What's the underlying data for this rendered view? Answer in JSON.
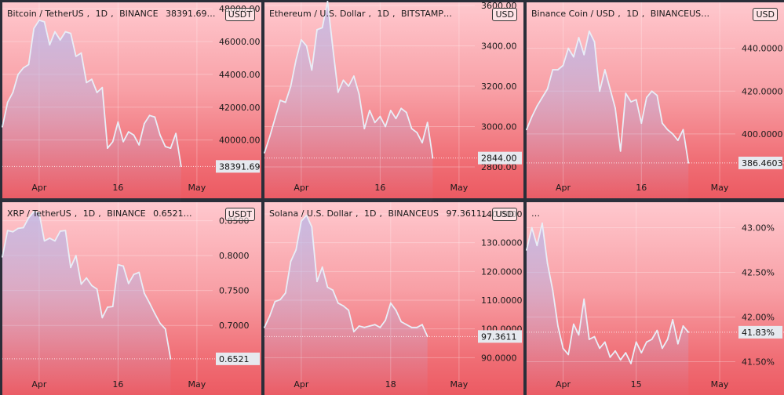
{
  "colors": {
    "line": "#e9eef7",
    "area_top": "#b8b6e8",
    "last_bg": "#e6e9ef",
    "text": "#1a1a1a"
  },
  "panels": [
    {
      "symbol": "Bitcoin / TetherUS",
      "interval": "1D",
      "exchange": "BINANCE",
      "last_value": "38391.69…",
      "currency": "USDT",
      "last_label": "38391.69",
      "chart_data": {
        "type": "area",
        "ylim": [
          37500,
          48200
        ],
        "y_ticks": [
          "40000.00",
          "42000.00",
          "44000.00",
          "46000.00",
          "48000.00"
        ],
        "y_tick_values": [
          40000,
          42000,
          44000,
          46000,
          48000
        ],
        "x_labels": [
          "Apr",
          "16",
          "May"
        ],
        "x_label_days": [
          7,
          22,
          37
        ],
        "last": 38391.69,
        "values": [
          40800,
          42300,
          42900,
          44000,
          44400,
          44600,
          46800,
          47300,
          47200,
          45800,
          46600,
          46100,
          46600,
          46500,
          45100,
          45300,
          43500,
          43700,
          42900,
          43200,
          39500,
          39900,
          41100,
          39900,
          40500,
          40300,
          39700,
          41000,
          41500,
          41400,
          40300,
          39600,
          39500,
          40400,
          38391.69
        ]
      }
    },
    {
      "symbol": "Ethereum / U.S. Dollar",
      "interval": "1D",
      "exchange": "BITSTAMP…",
      "last_value": "",
      "currency": "USD",
      "last_label": "2844.00",
      "chart_data": {
        "type": "area",
        "ylim": [
          2730,
          3600
        ],
        "y_ticks": [
          "2800.00",
          "3000.00",
          "3200.00",
          "3400.00",
          "3600.00"
        ],
        "y_tick_values": [
          2800,
          3000,
          3200,
          3400,
          3600
        ],
        "x_labels": [
          "Apr",
          "16",
          "May"
        ],
        "x_label_days": [
          7,
          22,
          37
        ],
        "last": 2844.0,
        "values": [
          2870,
          2950,
          3040,
          3130,
          3120,
          3200,
          3330,
          3430,
          3400,
          3280,
          3480,
          3490,
          3620,
          3390,
          3170,
          3230,
          3200,
          3250,
          3160,
          2990,
          3080,
          3020,
          3050,
          3000,
          3080,
          3040,
          3090,
          3070,
          2990,
          2970,
          2920,
          3020,
          2844
        ]
      }
    },
    {
      "symbol": "Binance Coin / USD",
      "interval": "1D",
      "exchange": "BINANCEUS…",
      "last_value": "",
      "currency": "USD",
      "last_label": "386.4603",
      "chart_data": {
        "type": "area",
        "ylim": [
          378,
          460
        ],
        "y_ticks": [
          "400.0000",
          "420.0000",
          "440.0000"
        ],
        "y_tick_values": [
          400,
          420,
          440
        ],
        "x_labels": [
          "Apr",
          "16",
          "May"
        ],
        "x_label_days": [
          7,
          22,
          37
        ],
        "last": 386.4603,
        "values": [
          402,
          408,
          413,
          417,
          421,
          430,
          430,
          432,
          440,
          436,
          445,
          437,
          448,
          443,
          420,
          430,
          421,
          412,
          392,
          419,
          415,
          416,
          405,
          417,
          420,
          418,
          405,
          402,
          400,
          397,
          402,
          386.4603
        ]
      }
    },
    {
      "symbol": "XRP / TetherUS",
      "interval": "1D",
      "exchange": "BINANCE",
      "last_value": "0.6521…",
      "currency": "USDT",
      "last_label": "0.6521",
      "chart_data": {
        "type": "area",
        "ylim": [
          0.625,
          0.872
        ],
        "y_ticks": [
          "0.7000",
          "0.7500",
          "0.8000",
          "0.8500"
        ],
        "y_tick_values": [
          0.7,
          0.75,
          0.8,
          0.85
        ],
        "x_labels": [
          "Apr",
          "16",
          "May"
        ],
        "x_label_days": [
          7,
          22,
          37
        ],
        "last": 0.6521,
        "values": [
          0.798,
          0.836,
          0.834,
          0.839,
          0.84,
          0.854,
          0.863,
          0.861,
          0.821,
          0.825,
          0.821,
          0.835,
          0.836,
          0.783,
          0.8,
          0.759,
          0.768,
          0.757,
          0.752,
          0.711,
          0.726,
          0.727,
          0.787,
          0.785,
          0.76,
          0.773,
          0.776,
          0.746,
          0.732,
          0.717,
          0.703,
          0.695,
          0.6521
        ]
      }
    },
    {
      "symbol": "Solana / U.S. Dollar",
      "interval": "1D",
      "exchange": "BINANCEUS",
      "last_value": "97.3611…",
      "currency": "USD",
      "last_label": "97.3611",
      "chart_data": {
        "type": "area",
        "ylim": [
          83,
          143
        ],
        "y_ticks": [
          "90.0000",
          "100.0000",
          "110.0000",
          "120.0000",
          "130.0000",
          "140.0000"
        ],
        "y_tick_values": [
          90,
          100,
          110,
          120,
          130,
          140
        ],
        "x_labels": [
          "Apr",
          "18",
          "May"
        ],
        "x_label_days": [
          7,
          24,
          37
        ],
        "last": 97.3611,
        "values": [
          100.5,
          104.5,
          109.5,
          110.2,
          112.5,
          123.5,
          127.5,
          137.5,
          139.5,
          135.5,
          116.5,
          121.5,
          114.5,
          113.5,
          109,
          108,
          106.5,
          99,
          101,
          100.5,
          101,
          101.5,
          100.5,
          103,
          109,
          106.5,
          102.5,
          101.5,
          100.5,
          100.5,
          101.5,
          97.3611
        ]
      }
    },
    {
      "symbol": "…",
      "interval": "",
      "exchange": "",
      "last_value": "",
      "currency": "",
      "last_label": "41.83%",
      "chart_data": {
        "type": "area",
        "ylim": [
          41.32,
          43.25
        ],
        "y_ticks": [
          "41.50%",
          "42.00%",
          "42.50%",
          "43.00%"
        ],
        "y_tick_values": [
          41.5,
          42.0,
          42.5,
          43.0
        ],
        "x_labels": [
          "Apr",
          "15",
          "May"
        ],
        "x_label_days": [
          7,
          21,
          37
        ],
        "last": 41.83,
        "values": [
          42.75,
          43.0,
          42.8,
          43.05,
          42.6,
          42.3,
          41.9,
          41.65,
          41.58,
          41.92,
          41.8,
          42.2,
          41.75,
          41.78,
          41.65,
          41.72,
          41.55,
          41.62,
          41.52,
          41.6,
          41.48,
          41.72,
          41.6,
          41.72,
          41.75,
          41.85,
          41.65,
          41.75,
          41.97,
          41.7,
          41.9,
          41.83
        ]
      }
    }
  ]
}
